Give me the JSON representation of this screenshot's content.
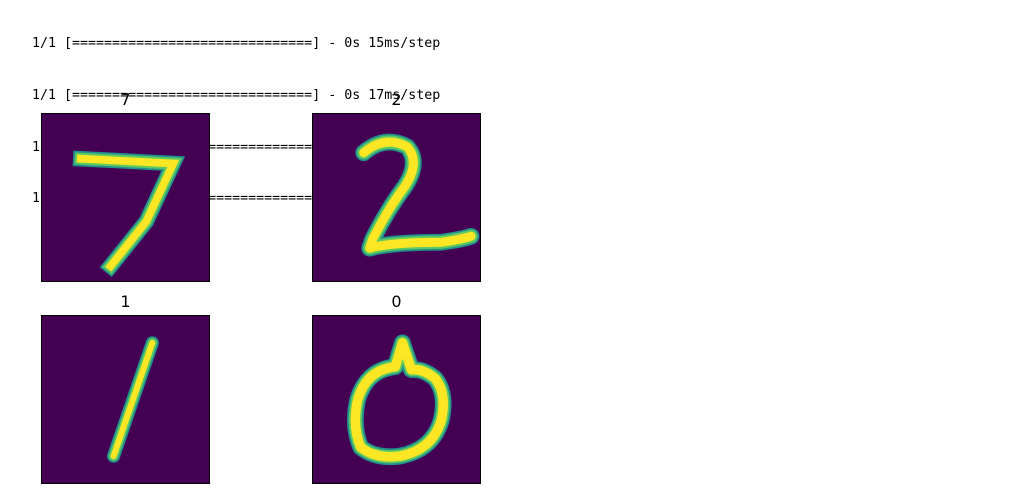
{
  "console": {
    "lines": [
      "1/1 [==============================] - 0s 15ms/step",
      "1/1 [==============================] - 0s 17ms/step",
      "1/1 [==============================] - 0s 17ms/step",
      "1/1 [==============================] - 0s 16ms/step"
    ]
  },
  "figure": {
    "colormap": [
      "#440154",
      "#21918c",
      "#5ec962",
      "#fde725"
    ],
    "panels": [
      {
        "title": "7"
      },
      {
        "title": "2"
      },
      {
        "title": "1"
      },
      {
        "title": "0"
      }
    ]
  }
}
